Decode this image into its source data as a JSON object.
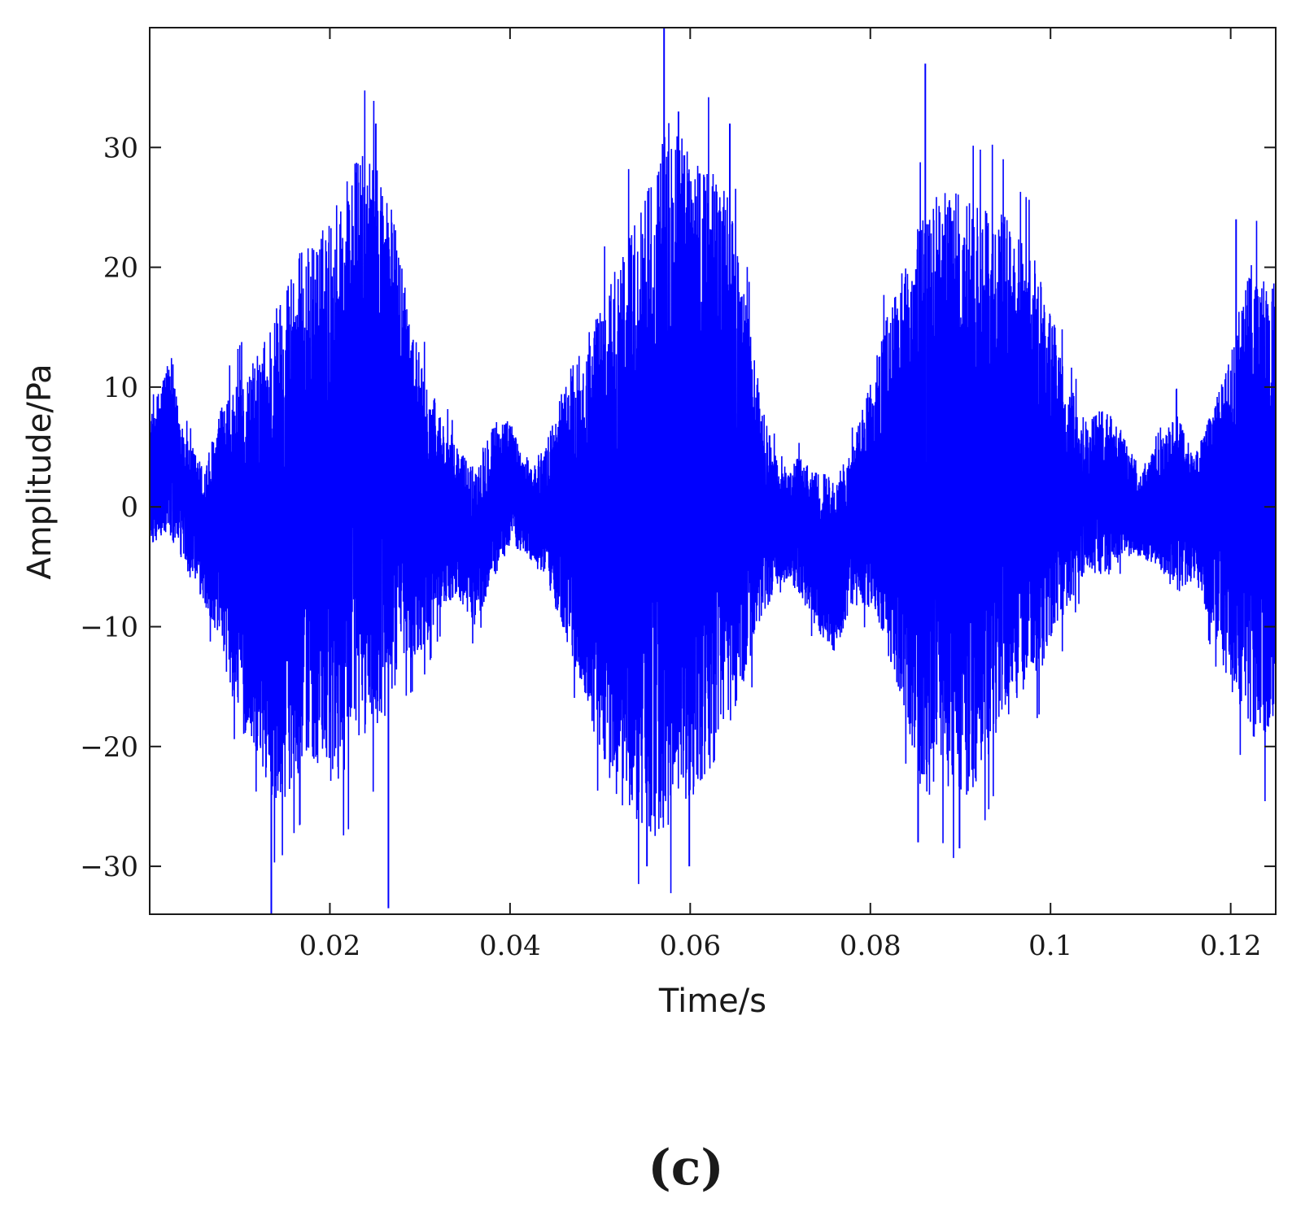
{
  "chart_data": {
    "type": "line",
    "title": "",
    "xlabel": "Time/s",
    "ylabel": "Amplitude/Pa",
    "xlim": [
      0.0,
      0.125
    ],
    "ylim": [
      -34,
      40
    ],
    "xticks": [
      0.02,
      0.04,
      0.06,
      0.08,
      0.1,
      0.12
    ],
    "xtick_labels": [
      "0.02",
      "0.04",
      "0.06",
      "0.08",
      "0.1",
      "0.12"
    ],
    "yticks": [
      30,
      20,
      10,
      0,
      -10,
      -20,
      -30
    ],
    "ytick_labels": [
      "30",
      "20",
      "10",
      "0",
      "−10",
      "−20",
      "−30"
    ],
    "grid": false,
    "legend": "none",
    "series": [
      {
        "color": "#0000ff",
        "envelope": {
          "x": [
            0.0,
            0.002,
            0.004,
            0.006,
            0.008,
            0.01,
            0.012,
            0.014,
            0.016,
            0.018,
            0.02,
            0.022,
            0.024,
            0.026,
            0.028,
            0.03,
            0.032,
            0.034,
            0.036,
            0.038,
            0.04,
            0.042,
            0.044,
            0.046,
            0.048,
            0.05,
            0.052,
            0.054,
            0.056,
            0.058,
            0.06,
            0.062,
            0.064,
            0.066,
            0.068,
            0.07,
            0.072,
            0.074,
            0.076,
            0.078,
            0.08,
            0.082,
            0.084,
            0.086,
            0.088,
            0.09,
            0.092,
            0.094,
            0.096,
            0.098,
            0.1,
            0.102,
            0.104,
            0.106,
            0.108,
            0.11,
            0.112,
            0.114,
            0.116,
            0.118,
            0.12,
            0.122,
            0.124,
            0.125
          ],
          "upper": [
            7,
            12,
            6,
            3,
            8,
            10,
            12,
            16,
            20,
            21,
            23,
            27,
            29,
            27,
            20,
            12,
            8,
            5,
            3,
            7,
            7,
            3,
            5,
            10,
            13,
            16,
            20,
            24,
            27,
            32,
            29,
            28,
            26,
            18,
            8,
            3,
            4,
            3,
            2,
            5,
            10,
            16,
            20,
            24,
            26,
            25,
            24,
            25,
            22,
            21,
            16,
            10,
            7,
            8,
            6,
            3,
            5,
            8,
            4,
            8,
            12,
            20,
            18,
            18
          ],
          "lower": [
            -3,
            -2,
            -5,
            -8,
            -12,
            -18,
            -20,
            -25,
            -22,
            -20,
            -23,
            -21,
            -18,
            -18,
            -12,
            -12,
            -9,
            -7,
            -10,
            -6,
            -3,
            -4,
            -6,
            -10,
            -15,
            -20,
            -24,
            -25,
            -27,
            -25,
            -24,
            -22,
            -18,
            -14,
            -9,
            -6,
            -7,
            -10,
            -12,
            -8,
            -8,
            -12,
            -17,
            -24,
            -22,
            -24,
            -22,
            -18,
            -16,
            -14,
            -12,
            -8,
            -5,
            -6,
            -4,
            -4,
            -5,
            -7,
            -6,
            -10,
            -15,
            -18,
            -20,
            -16
          ]
        },
        "peak_spikes": [
          {
            "x": 0.0135,
            "y": -34
          },
          {
            "x": 0.0265,
            "y": -33.5
          },
          {
            "x": 0.0251,
            "y": 32
          },
          {
            "x": 0.0571,
            "y": 40
          },
          {
            "x": 0.0599,
            "y": -30
          },
          {
            "x": 0.0587,
            "y": 33
          },
          {
            "x": 0.0644,
            "y": 32
          },
          {
            "x": 0.0861,
            "y": 37
          },
          {
            "x": 0.0899,
            "y": -28.5
          },
          {
            "x": 0.0552,
            "y": -30
          },
          {
            "x": 0.0853,
            "y": -28
          },
          {
            "x": 0.1206,
            "y": 24
          }
        ]
      }
    ],
    "panel_label": "(c)"
  }
}
